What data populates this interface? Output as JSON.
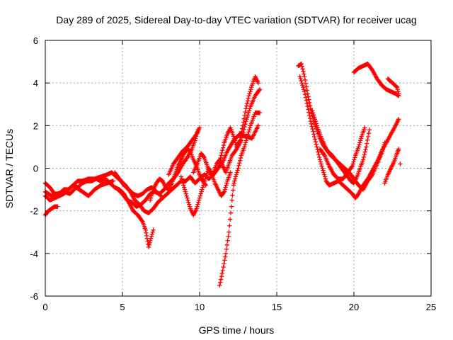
{
  "chart_data": {
    "type": "scatter",
    "title": "Day 289 of 2025, Sidereal Day-to-day VTEC variation (SDTVAR) for receiver ucag",
    "xlabel": "GPS time / hours",
    "ylabel": "SDTVAR / TECUs",
    "xlim": [
      0,
      25
    ],
    "ylim": [
      -6,
      6
    ],
    "xticks": [
      0,
      5,
      10,
      15,
      20,
      25
    ],
    "xtick_labels": [
      "0",
      "5",
      "10",
      "15",
      "20",
      "25"
    ],
    "yticks": [
      -6,
      -4,
      -2,
      0,
      2,
      4,
      6
    ],
    "ytick_labels": [
      "-6",
      "-4",
      "-2",
      "0",
      "2",
      "4",
      "6"
    ],
    "grid": true,
    "legend": "none",
    "marker": "plus",
    "color": "#ff0000",
    "traces": [
      [
        [
          0.0,
          -0.7
        ],
        [
          0.3,
          -0.9
        ],
        [
          0.6,
          -1.2
        ],
        [
          0.9,
          -1.2
        ],
        [
          1.2,
          -1.0
        ],
        [
          1.5,
          -1.0
        ],
        [
          1.8,
          -0.8
        ],
        [
          2.1,
          -0.6
        ],
        [
          2.4,
          -0.6
        ],
        [
          2.8,
          -0.5
        ],
        [
          3.2,
          -0.5
        ],
        [
          3.6,
          -0.4
        ],
        [
          4.0,
          -0.3
        ],
        [
          4.3,
          -0.2
        ],
        [
          4.6,
          -0.4
        ],
        [
          4.9,
          -0.6
        ],
        [
          5.2,
          -0.8
        ],
        [
          5.5,
          -1.1
        ],
        [
          5.8,
          -1.5
        ],
        [
          6.1,
          -1.7
        ],
        [
          6.4,
          -2.0
        ],
        [
          6.7,
          -2.1
        ],
        [
          7.0,
          -1.9
        ],
        [
          7.3,
          -1.6
        ],
        [
          7.6,
          -1.4
        ],
        [
          7.9,
          -1.2
        ],
        [
          8.2,
          -1.0
        ],
        [
          8.5,
          -0.8
        ],
        [
          8.8,
          -0.6
        ],
        [
          9.1,
          -0.6
        ],
        [
          9.4,
          -0.4
        ],
        [
          9.7,
          -0.7
        ],
        [
          10.0,
          -0.5
        ],
        [
          10.3,
          -0.3
        ],
        [
          10.6,
          -0.5
        ],
        [
          10.9,
          -0.3
        ],
        [
          11.2,
          0.0
        ],
        [
          11.5,
          0.3
        ],
        [
          11.8,
          0.8
        ],
        [
          12.2,
          1.3
        ],
        [
          12.6,
          1.6
        ],
        [
          13.0,
          1.5
        ],
        [
          13.4,
          1.4
        ],
        [
          13.8,
          2.0
        ]
      ],
      [
        [
          0.0,
          -1.3
        ],
        [
          0.3,
          -1.5
        ],
        [
          0.6,
          -1.4
        ],
        [
          0.9,
          -1.3
        ],
        [
          1.2,
          -1.2
        ],
        [
          1.5,
          -1.0
        ],
        [
          1.8,
          -0.8
        ],
        [
          2.1,
          -0.9
        ],
        [
          2.4,
          -0.7
        ],
        [
          2.7,
          -0.6
        ],
        [
          3.0,
          -0.6
        ],
        [
          3.3,
          -0.5
        ],
        [
          3.6,
          -0.6
        ],
        [
          3.9,
          -0.5
        ],
        [
          4.2,
          -0.7
        ],
        [
          4.5,
          -0.9
        ],
        [
          4.8,
          -1.0
        ],
        [
          5.1,
          -1.2
        ],
        [
          5.4,
          -1.6
        ],
        [
          5.7,
          -2.0
        ],
        [
          6.0,
          -2.2
        ],
        [
          6.3,
          -2.5
        ],
        [
          6.5,
          -2.9
        ],
        [
          6.6,
          -3.3
        ],
        [
          6.7,
          -3.7
        ],
        [
          6.8,
          -3.4
        ],
        [
          7.0,
          -2.9
        ]
      ],
      [
        [
          0.0,
          -2.2
        ],
        [
          0.2,
          -2.0
        ],
        [
          0.4,
          -1.9
        ],
        [
          0.6,
          -1.8
        ],
        [
          0.8,
          -1.8
        ]
      ],
      [
        [
          0.0,
          -1.1
        ],
        [
          0.4,
          -1.3
        ],
        [
          0.8,
          -1.2
        ],
        [
          1.2,
          -1.1
        ],
        [
          1.6,
          -1.2
        ],
        [
          2.0,
          -0.9
        ],
        [
          2.4,
          -1.1
        ],
        [
          2.8,
          -1.3
        ],
        [
          3.2,
          -1.0
        ],
        [
          3.6,
          -0.8
        ],
        [
          4.0,
          -0.7
        ],
        [
          4.4,
          -0.6
        ]
      ],
      [
        [
          4.5,
          -0.2
        ],
        [
          4.8,
          -0.5
        ],
        [
          5.1,
          -0.8
        ],
        [
          5.4,
          -1.0
        ],
        [
          5.7,
          -1.2
        ],
        [
          6.0,
          -1.3
        ],
        [
          6.3,
          -1.2
        ],
        [
          6.6,
          -1.0
        ],
        [
          6.9,
          -0.9
        ],
        [
          7.2,
          -1.1
        ],
        [
          7.5,
          -1.3
        ]
      ],
      [
        [
          4.7,
          -1.0
        ],
        [
          5.0,
          -1.2
        ],
        [
          5.3,
          -1.5
        ],
        [
          5.6,
          -1.6
        ],
        [
          5.9,
          -1.8
        ],
        [
          6.2,
          -1.7
        ],
        [
          6.5,
          -1.5
        ],
        [
          6.8,
          -1.2
        ],
        [
          7.1,
          -1.1
        ],
        [
          7.4,
          -1.2
        ],
        [
          7.7,
          -1.0
        ],
        [
          8.0,
          -0.7
        ],
        [
          8.3,
          -0.5
        ],
        [
          8.6,
          -0.2
        ],
        [
          8.9,
          0.2
        ],
        [
          9.2,
          0.5
        ],
        [
          9.5,
          0.9
        ],
        [
          9.7,
          1.3
        ],
        [
          9.9,
          1.8
        ]
      ],
      [
        [
          6.8,
          -1.5
        ],
        [
          7.0,
          -1.0
        ],
        [
          7.2,
          -0.7
        ],
        [
          7.4,
          -0.5
        ],
        [
          7.6,
          -0.6
        ],
        [
          7.8,
          -0.9
        ],
        [
          8.0,
          -1.0
        ],
        [
          8.2,
          -0.7
        ],
        [
          8.4,
          -0.3
        ],
        [
          8.6,
          0.1
        ],
        [
          8.8,
          0.4
        ],
        [
          9.0,
          0.7
        ],
        [
          9.2,
          0.9
        ],
        [
          9.4,
          0.8
        ],
        [
          9.6,
          0.4
        ],
        [
          9.8,
          0.1
        ],
        [
          10.0,
          -0.3
        ],
        [
          10.2,
          -0.6
        ],
        [
          10.4,
          -0.8
        ]
      ],
      [
        [
          8.0,
          -0.3
        ],
        [
          8.3,
          0.2
        ],
        [
          8.6,
          0.5
        ],
        [
          8.9,
          0.8
        ],
        [
          9.2,
          1.0
        ],
        [
          9.5,
          1.3
        ],
        [
          9.8,
          1.6
        ],
        [
          10.0,
          1.9
        ]
      ],
      [
        [
          8.8,
          -0.4
        ],
        [
          9.0,
          -0.9
        ],
        [
          9.2,
          -1.4
        ],
        [
          9.4,
          -1.9
        ],
        [
          9.6,
          -2.2
        ],
        [
          9.8,
          -1.9
        ],
        [
          10.0,
          -1.4
        ],
        [
          10.2,
          -0.9
        ],
        [
          10.4,
          -0.4
        ],
        [
          10.6,
          0.0
        ],
        [
          10.8,
          -0.3
        ],
        [
          11.0,
          -0.7
        ],
        [
          11.2,
          -1.0
        ],
        [
          11.4,
          -1.3
        ],
        [
          11.6,
          -1.1
        ],
        [
          11.8,
          -0.6
        ],
        [
          12.0,
          -0.2
        ]
      ],
      [
        [
          9.6,
          -0.2
        ],
        [
          9.9,
          0.3
        ],
        [
          10.1,
          0.7
        ],
        [
          10.3,
          0.5
        ],
        [
          10.5,
          0.1
        ],
        [
          10.7,
          -0.3
        ],
        [
          10.9,
          -0.2
        ],
        [
          11.1,
          0.2
        ],
        [
          11.3,
          0.4
        ],
        [
          11.5,
          0.1
        ],
        [
          11.7,
          -0.2
        ],
        [
          11.9,
          0.2
        ],
        [
          12.1,
          0.6
        ],
        [
          12.4,
          0.9
        ],
        [
          12.7,
          1.3
        ],
        [
          13.0,
          2.2
        ],
        [
          13.3,
          2.9
        ],
        [
          13.6,
          3.4
        ],
        [
          13.9,
          3.7
        ]
      ],
      [
        [
          11.2,
          0.0
        ],
        [
          11.4,
          0.6
        ],
        [
          11.6,
          1.2
        ],
        [
          11.8,
          1.6
        ],
        [
          12.0,
          1.9
        ],
        [
          12.2,
          1.5
        ],
        [
          12.4,
          1.0
        ],
        [
          12.6,
          1.3
        ],
        [
          12.8,
          2.0
        ],
        [
          13.0,
          2.8
        ],
        [
          13.2,
          3.4
        ],
        [
          13.4,
          3.9
        ],
        [
          13.6,
          4.3
        ],
        [
          13.8,
          4.0
        ]
      ],
      [
        [
          11.3,
          -5.5
        ],
        [
          11.5,
          -4.8
        ],
        [
          11.7,
          -4.0
        ],
        [
          11.9,
          -3.0
        ],
        [
          12.1,
          -1.5
        ],
        [
          12.2,
          -0.8
        ],
        [
          12.3,
          -0.5
        ],
        [
          12.5,
          0.0
        ],
        [
          12.7,
          0.6
        ],
        [
          12.9,
          1.0
        ],
        [
          13.1,
          1.5
        ],
        [
          13.3,
          2.0
        ],
        [
          13.6,
          2.6
        ],
        [
          13.9,
          2.6
        ]
      ],
      [
        [
          16.4,
          4.8
        ],
        [
          16.6,
          4.9
        ],
        [
          16.8,
          4.3
        ],
        [
          17.0,
          3.5
        ],
        [
          17.2,
          2.8
        ],
        [
          17.4,
          2.2
        ],
        [
          17.6,
          1.8
        ],
        [
          17.8,
          1.4
        ],
        [
          18.0,
          1.1
        ],
        [
          18.3,
          0.8
        ],
        [
          18.6,
          0.6
        ],
        [
          18.9,
          0.3
        ],
        [
          19.2,
          0.0
        ],
        [
          19.5,
          -0.3
        ],
        [
          19.8,
          -0.6
        ],
        [
          20.0,
          -0.7
        ],
        [
          20.2,
          -0.4
        ],
        [
          20.4,
          0.0
        ],
        [
          20.6,
          0.4
        ],
        [
          20.8,
          1.0
        ],
        [
          21.0,
          1.8
        ]
      ],
      [
        [
          16.5,
          4.3
        ],
        [
          16.8,
          3.6
        ],
        [
          17.0,
          2.9
        ],
        [
          17.2,
          2.2
        ],
        [
          17.4,
          1.6
        ],
        [
          17.6,
          1.0
        ],
        [
          17.8,
          0.4
        ],
        [
          18.0,
          -0.1
        ],
        [
          18.2,
          -0.6
        ],
        [
          18.4,
          -0.8
        ],
        [
          18.7,
          -0.7
        ],
        [
          19.0,
          -0.6
        ],
        [
          19.3,
          -0.8
        ],
        [
          19.6,
          -1.0
        ],
        [
          19.9,
          -1.2
        ],
        [
          20.1,
          -1.4
        ],
        [
          20.3,
          -1.2
        ],
        [
          20.6,
          -0.8
        ],
        [
          20.9,
          -0.5
        ],
        [
          21.2,
          -0.1
        ],
        [
          21.5,
          0.3
        ],
        [
          21.8,
          0.8
        ],
        [
          22.1,
          1.2
        ],
        [
          22.4,
          1.6
        ],
        [
          22.7,
          2.0
        ],
        [
          22.9,
          2.3
        ]
      ],
      [
        [
          17.3,
          2.7
        ],
        [
          17.6,
          2.0
        ],
        [
          17.9,
          1.4
        ],
        [
          18.2,
          0.9
        ],
        [
          18.5,
          0.6
        ],
        [
          18.8,
          0.4
        ],
        [
          19.1,
          0.2
        ],
        [
          19.4,
          0.0
        ],
        [
          19.7,
          -0.2
        ],
        [
          20.0,
          -0.5
        ],
        [
          20.3,
          -0.8
        ],
        [
          20.6,
          -1.0
        ],
        [
          20.9,
          -0.6
        ],
        [
          21.2,
          -0.3
        ],
        [
          21.5,
          0.2
        ],
        [
          21.8,
          0.7
        ],
        [
          22.0,
          1.2
        ]
      ],
      [
        [
          17.8,
          0.9
        ],
        [
          18.1,
          0.6
        ],
        [
          18.4,
          0.1
        ],
        [
          18.7,
          -0.3
        ],
        [
          19.0,
          -0.5
        ],
        [
          19.3,
          -0.5
        ],
        [
          19.6,
          -0.2
        ],
        [
          19.9,
          0.1
        ],
        [
          20.1,
          0.6
        ],
        [
          20.3,
          1.0
        ],
        [
          20.5,
          1.5
        ],
        [
          20.7,
          1.9
        ]
      ],
      [
        [
          20.0,
          4.5
        ],
        [
          20.3,
          4.7
        ],
        [
          20.6,
          4.8
        ],
        [
          20.9,
          4.9
        ],
        [
          21.2,
          4.6
        ],
        [
          21.5,
          4.2
        ],
        [
          21.8,
          3.9
        ],
        [
          22.1,
          3.7
        ],
        [
          22.4,
          3.6
        ],
        [
          22.7,
          3.5
        ],
        [
          22.9,
          3.4
        ]
      ],
      [
        [
          22.2,
          4.2
        ],
        [
          22.5,
          4.0
        ],
        [
          22.8,
          3.8
        ],
        [
          22.9,
          3.5
        ]
      ],
      [
        [
          22.0,
          -0.7
        ],
        [
          22.2,
          -0.3
        ],
        [
          22.4,
          0.0
        ],
        [
          22.6,
          0.3
        ],
        [
          22.8,
          0.7
        ],
        [
          22.9,
          0.9
        ]
      ],
      [
        [
          23.0,
          0.2
        ]
      ]
    ]
  }
}
